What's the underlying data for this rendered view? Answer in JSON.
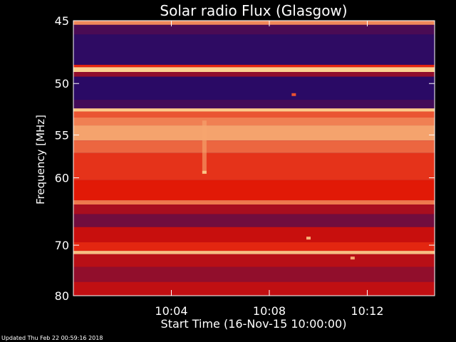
{
  "chart_data": {
    "type": "heatmap",
    "title": "Solar radio Flux (Glasgow)",
    "ylabel": "Frequency [MHz]",
    "xlabel": "Start Time (16-Nov-15 10:00:00)",
    "x_tick_labels": [
      "10:04",
      "10:08",
      "10:12"
    ],
    "x_ticks_minutes": [
      4,
      8,
      12
    ],
    "xlim_minutes": [
      0,
      14.75
    ],
    "y_tick_labels": [
      "45",
      "50",
      "55",
      "60",
      "70",
      "80"
    ],
    "y_ticks_mhz": [
      45,
      50,
      55,
      60,
      70,
      80
    ],
    "ylim_mhz": [
      45,
      80
    ],
    "y_scale": "reciprocal",
    "grid": false,
    "colors": {
      "background": "#000000",
      "axis": "#ffffff",
      "low": "#1a0a6e",
      "mid": "#e01000",
      "high": "#ffe8a0"
    },
    "bands": [
      {
        "from": 45.0,
        "to": 45.3,
        "level": 0.78
      },
      {
        "from": 45.3,
        "to": 46.0,
        "level": 0.12
      },
      {
        "from": 46.0,
        "to": 48.4,
        "level": 0.05
      },
      {
        "from": 48.4,
        "to": 48.6,
        "level": 0.55
      },
      {
        "from": 48.6,
        "to": 49.0,
        "level": 0.95
      },
      {
        "from": 49.0,
        "to": 49.4,
        "level": 0.3
      },
      {
        "from": 49.4,
        "to": 51.5,
        "level": 0.04
      },
      {
        "from": 51.5,
        "to": 52.3,
        "level": 0.1
      },
      {
        "from": 52.3,
        "to": 52.6,
        "level": 0.93
      },
      {
        "from": 52.6,
        "to": 53.2,
        "level": 0.66
      },
      {
        "from": 53.2,
        "to": 54.0,
        "level": 0.76
      },
      {
        "from": 54.0,
        "to": 55.6,
        "level": 0.84
      },
      {
        "from": 55.6,
        "to": 57.0,
        "level": 0.7
      },
      {
        "from": 57.0,
        "to": 60.3,
        "level": 0.58
      },
      {
        "from": 60.3,
        "to": 63.0,
        "level": 0.52
      },
      {
        "from": 63.0,
        "to": 63.6,
        "level": 0.74
      },
      {
        "from": 63.6,
        "to": 65.0,
        "level": 0.36
      },
      {
        "from": 65.0,
        "to": 67.0,
        "level": 0.22
      },
      {
        "from": 67.0,
        "to": 69.5,
        "level": 0.44
      },
      {
        "from": 69.5,
        "to": 71.0,
        "level": 0.55
      },
      {
        "from": 71.0,
        "to": 71.6,
        "level": 0.9
      },
      {
        "from": 71.6,
        "to": 74.0,
        "level": 0.4
      },
      {
        "from": 74.0,
        "to": 77.0,
        "level": 0.3
      },
      {
        "from": 77.0,
        "to": 80.0,
        "level": 0.42
      }
    ],
    "spots": [
      {
        "minute": 5.35,
        "mhz": 59.3,
        "level": 0.92
      },
      {
        "minute": 9.0,
        "mhz": 51.0,
        "level": 0.65
      },
      {
        "minute": 9.6,
        "mhz": 68.8,
        "level": 0.88
      },
      {
        "minute": 11.4,
        "mhz": 72.3,
        "level": 0.85
      }
    ],
    "streaks": [
      {
        "minute": 5.35,
        "from": 53.5,
        "to": 59.5,
        "level": 0.85
      }
    ]
  },
  "footer": {
    "updated": "Updated Thu Feb 22 00:59:16 2018"
  }
}
